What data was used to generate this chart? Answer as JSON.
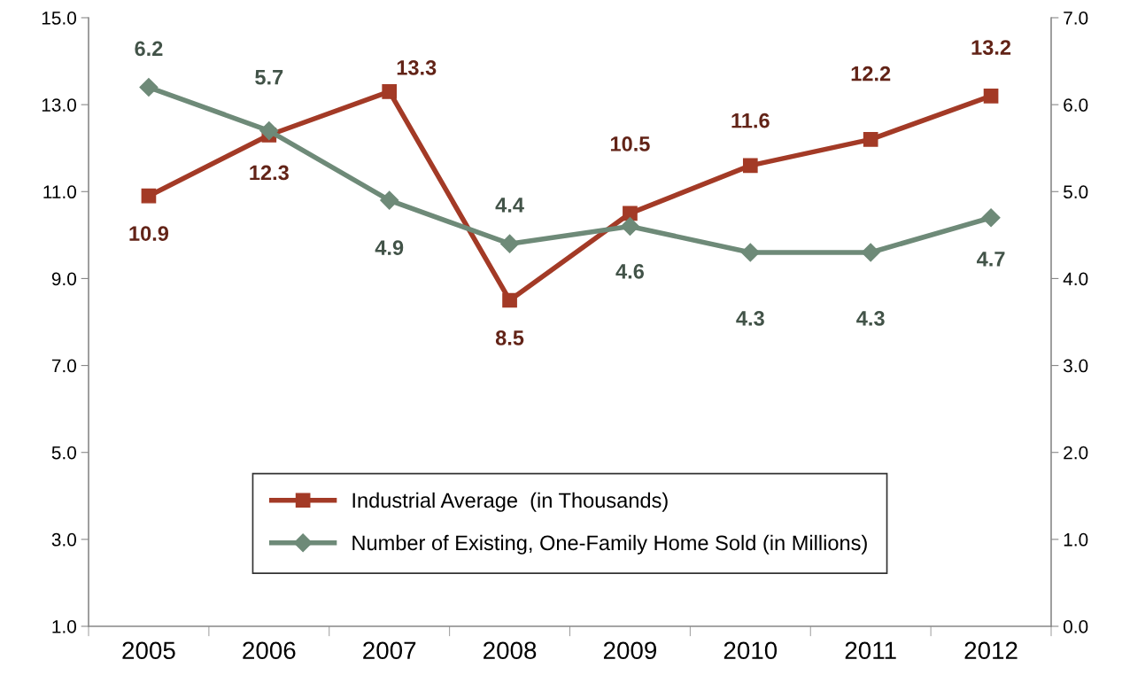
{
  "chart_data": {
    "type": "line",
    "categories": [
      "2005",
      "2006",
      "2007",
      "2008",
      "2009",
      "2010",
      "2011",
      "2012"
    ],
    "series": [
      {
        "name": "Industrial Average  (in Thousands)",
        "color": "#a33a26",
        "marker": "square",
        "values": [
          10.9,
          12.3,
          13.3,
          8.5,
          10.5,
          11.6,
          12.2,
          13.2
        ]
      },
      {
        "name": "Number of Existing, One-Family Home Sold (in Millions)",
        "color": "#6e8a78",
        "marker": "diamond",
        "axis": "y2",
        "values": [
          6.2,
          5.7,
          4.9,
          4.4,
          4.6,
          4.3,
          4.3,
          4.7
        ]
      }
    ],
    "ylim": [
      1.0,
      15.0
    ],
    "yticks": [
      {
        "value": 1,
        "label": "1.0"
      },
      {
        "value": 3,
        "label": "3.0"
      },
      {
        "value": 5,
        "label": "5.0"
      },
      {
        "value": 7,
        "label": "7.0"
      },
      {
        "value": 9,
        "label": "9.0"
      },
      {
        "value": 11,
        "label": "11.0"
      },
      {
        "value": 13,
        "label": "13.0"
      },
      {
        "value": 15,
        "label": "15.0"
      }
    ],
    "y2lim": [
      0.0,
      7.0
    ],
    "y2ticks": [
      {
        "value": 0,
        "label": "0.0"
      },
      {
        "value": 1,
        "label": "1.0"
      },
      {
        "value": 2,
        "label": "2.0"
      },
      {
        "value": 3,
        "label": "3.0"
      },
      {
        "value": 4,
        "label": "4.0"
      },
      {
        "value": 5,
        "label": "5.0"
      },
      {
        "value": 6,
        "label": "6.0"
      },
      {
        "value": 7,
        "label": "7.0"
      }
    ],
    "data_labels": true,
    "grid": false,
    "legend": "bottom",
    "line_style": "solid"
  }
}
